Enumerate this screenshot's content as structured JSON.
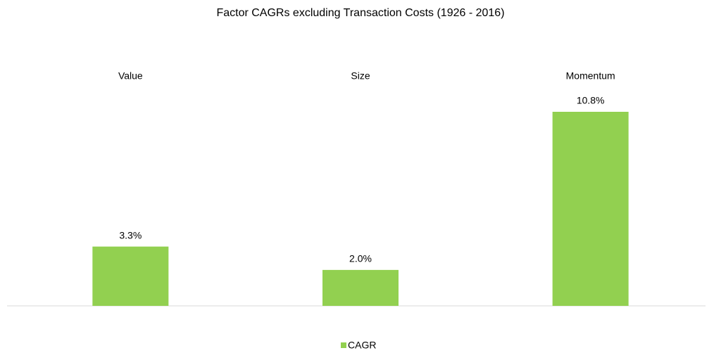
{
  "chart_data": {
    "type": "bar",
    "title": "Factor CAGRs excluding Transaction Costs (1926 - 2016)",
    "categories": [
      "Value",
      "Size",
      "Momentum"
    ],
    "series": [
      {
        "name": "CAGR",
        "color": "#92d050",
        "values": [
          3.3,
          2.0,
          10.8
        ],
        "value_labels": [
          "3.3%",
          "2.0%",
          "10.8%"
        ]
      }
    ],
    "legend": "bottom"
  }
}
